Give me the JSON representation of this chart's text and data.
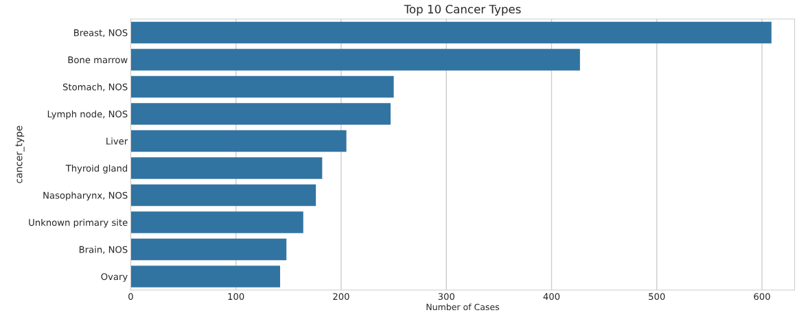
{
  "chart_data": {
    "type": "bar",
    "orientation": "horizontal",
    "title": "Top 10 Cancer Types",
    "xlabel": "Number of Cases",
    "ylabel": "cancer_type",
    "categories": [
      "Breast, NOS",
      "Bone marrow",
      "Stomach, NOS",
      "Lymph node, NOS",
      "Liver",
      "Thyroid gland",
      "Nasopharynx, NOS",
      "Unknown primary site",
      "Brain, NOS",
      "Ovary"
    ],
    "values": [
      609,
      427,
      250,
      247,
      205,
      182,
      176,
      164,
      148,
      142
    ],
    "color": "#3274a1",
    "xlim": [
      0,
      631
    ],
    "xticks": [
      0,
      100,
      200,
      300,
      400,
      500,
      600
    ],
    "grid": "x",
    "legend": false
  }
}
